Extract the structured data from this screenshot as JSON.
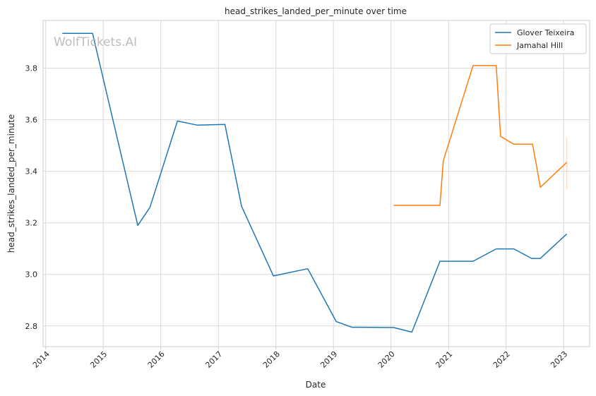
{
  "watermark": "WolfTickets.AI",
  "chart_data": {
    "type": "line",
    "title": "head_strikes_landed_per_minute over time",
    "xlabel": "Date",
    "ylabel": "head_strikes_landed_per_minute",
    "x_type": "date",
    "xlim": [
      "2013-12-15",
      "2023-06-15"
    ],
    "ylim": [
      2.72,
      3.985
    ],
    "x_ticks": [
      "2014-01-01",
      "2015-01-01",
      "2016-01-01",
      "2017-01-01",
      "2018-01-01",
      "2019-01-01",
      "2020-01-01",
      "2021-01-01",
      "2022-01-01",
      "2023-01-01"
    ],
    "x_tick_labels": [
      "2014",
      "2015",
      "2016",
      "2017",
      "2018",
      "2019",
      "2020",
      "2021",
      "2022",
      "2023"
    ],
    "y_ticks": [
      2.8,
      3.0,
      3.2,
      3.4,
      3.6,
      3.8
    ],
    "y_tick_labels": [
      "2.8",
      "3.0",
      "3.2",
      "3.4",
      "3.6",
      "3.8"
    ],
    "grid": true,
    "legend_position": "top-right",
    "series": [
      {
        "name": "Glover Teixeira",
        "color": "#1f77b4",
        "points": [
          [
            "2014-04-16",
            3.935
          ],
          [
            "2014-10-25",
            3.935
          ],
          [
            "2015-08-08",
            3.19
          ],
          [
            "2015-10-24",
            3.26
          ],
          [
            "2016-04-16",
            3.595
          ],
          [
            "2016-08-20",
            3.579
          ],
          [
            "2017-02-11",
            3.582
          ],
          [
            "2017-05-28",
            3.264
          ],
          [
            "2017-12-16",
            2.994
          ],
          [
            "2018-07-22",
            3.022
          ],
          [
            "2019-01-19",
            2.817
          ],
          [
            "2019-04-27",
            2.795
          ],
          [
            "2020-01-18",
            2.794
          ],
          [
            "2020-05-13",
            2.776
          ],
          [
            "2020-11-07",
            3.051
          ],
          [
            "2021-06-05",
            3.051
          ],
          [
            "2021-10-30",
            3.099
          ],
          [
            "2022-02-19",
            3.099
          ],
          [
            "2022-06-12",
            3.062
          ],
          [
            "2022-08-06",
            3.062
          ],
          [
            "2023-01-21",
            3.157
          ]
        ]
      },
      {
        "name": "Jamahal Hill",
        "color": "#ff7f0e",
        "points": [
          [
            "2020-01-18",
            3.268
          ],
          [
            "2020-11-07",
            3.268
          ],
          [
            "2020-11-28",
            3.44
          ],
          [
            "2021-06-05",
            3.81
          ],
          [
            "2021-10-30",
            3.81
          ],
          [
            "2021-11-27",
            3.535
          ],
          [
            "2022-02-19",
            3.505
          ],
          [
            "2022-06-18",
            3.505
          ],
          [
            "2022-08-06",
            3.338
          ],
          [
            "2023-01-21",
            3.435
          ]
        ],
        "error_band": {
          "x": "2023-01-21",
          "low": 3.33,
          "high": 3.535
        }
      }
    ]
  }
}
